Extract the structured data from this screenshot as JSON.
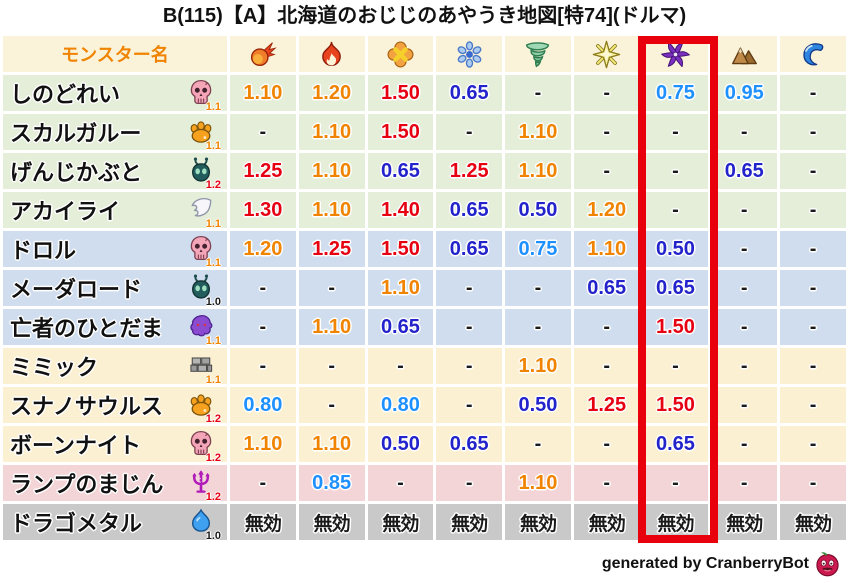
{
  "title": "B(115)【A】北海道のおじじのあやうき地図[特74](ドルマ)",
  "footer": {
    "credit": "generated by CranberryBot",
    "mascot_icon": "berry-face-icon"
  },
  "colors": {
    "highlight_box": "#e8000d",
    "header_bg": "#faf3d9",
    "header_text": "#f08300",
    "value_red": "#e60012",
    "value_orange": "#f08300",
    "value_light_blue": "#1e90ff",
    "value_dark_blue": "#2323cb",
    "value_neutral": "#1a1a1a",
    "row_green": "#e4eed9",
    "row_blue": "#cfddee",
    "row_cream": "#fbf0d1",
    "row_pink": "#f3d5d8",
    "row_gray": "#c9c9c9"
  },
  "chart_data": {
    "type": "table",
    "title": "B(115)【A】北海道のおじじのあやうき地図[特74](ドルマ)",
    "name_header": "モンスター名",
    "element_columns": [
      "fireball",
      "flame",
      "explosion",
      "snowflake",
      "tornado",
      "spark",
      "dark-spiral",
      "mountain",
      "wave"
    ],
    "highlight_column_index": 6,
    "value_color_rule": "red>=1.25, orange 1.10-1.20, light_blue 0.75-0.95, dark_blue<=0.65, neutral for - and 無効",
    "rows": [
      {
        "name": "しのどれい",
        "icon": "skull",
        "level": "1.1",
        "tone": "green",
        "values": [
          "1.10",
          "1.20",
          "1.50",
          "0.65",
          "-",
          "-",
          "0.75",
          "0.95",
          "-"
        ]
      },
      {
        "name": "スカルガルー",
        "icon": "paw",
        "level": "1.1",
        "tone": "green",
        "values": [
          "-",
          "1.10",
          "1.50",
          "-",
          "1.10",
          "-",
          "-",
          "-",
          "-"
        ]
      },
      {
        "name": "げんじかぶと",
        "icon": "beetle",
        "level": "1.2",
        "tone": "green",
        "values": [
          "1.25",
          "1.10",
          "0.65",
          "1.25",
          "1.10",
          "-",
          "-",
          "0.65",
          "-"
        ]
      },
      {
        "name": "アカイライ",
        "icon": "wing",
        "level": "1.1",
        "tone": "green",
        "values": [
          "1.30",
          "1.10",
          "1.40",
          "0.65",
          "0.50",
          "1.20",
          "-",
          "-",
          "-"
        ]
      },
      {
        "name": "ドロル",
        "icon": "skull",
        "level": "1.1",
        "tone": "blue",
        "values": [
          "1.20",
          "1.25",
          "1.50",
          "0.65",
          "0.75",
          "1.10",
          "0.50",
          "-",
          "-"
        ]
      },
      {
        "name": "メーダロード",
        "icon": "beetle",
        "level": "1.0",
        "tone": "blue",
        "values": [
          "-",
          "-",
          "1.10",
          "-",
          "-",
          "0.65",
          "0.65",
          "-",
          "-"
        ]
      },
      {
        "name": "亡者のひとだま",
        "icon": "ghost",
        "level": "1.1",
        "tone": "blue",
        "values": [
          "-",
          "1.10",
          "0.65",
          "-",
          "-",
          "-",
          "1.50",
          "-",
          "-"
        ]
      },
      {
        "name": "ミミック",
        "icon": "brick",
        "level": "1.1",
        "tone": "cream",
        "values": [
          "-",
          "-",
          "-",
          "-",
          "1.10",
          "-",
          "-",
          "-",
          "-"
        ]
      },
      {
        "name": "スナノサウルス",
        "icon": "paw",
        "level": "1.2",
        "tone": "cream",
        "values": [
          "0.80",
          "-",
          "0.80",
          "-",
          "0.50",
          "1.25",
          "1.50",
          "-",
          "-"
        ]
      },
      {
        "name": "ボーンナイト",
        "icon": "skull",
        "level": "1.2",
        "tone": "cream",
        "values": [
          "1.10",
          "1.10",
          "0.50",
          "0.65",
          "-",
          "-",
          "0.65",
          "-",
          "-"
        ]
      },
      {
        "name": "ランプのまじん",
        "icon": "trident",
        "level": "1.2",
        "tone": "pink",
        "values": [
          "-",
          "0.85",
          "-",
          "-",
          "1.10",
          "-",
          "-",
          "-",
          "-"
        ]
      },
      {
        "name": "ドラゴメタル",
        "icon": "slime",
        "level": "1.0",
        "tone": "gray",
        "values": [
          "無効",
          "無効",
          "無効",
          "無効",
          "無効",
          "無効",
          "無効",
          "無効",
          "無効"
        ]
      }
    ]
  }
}
